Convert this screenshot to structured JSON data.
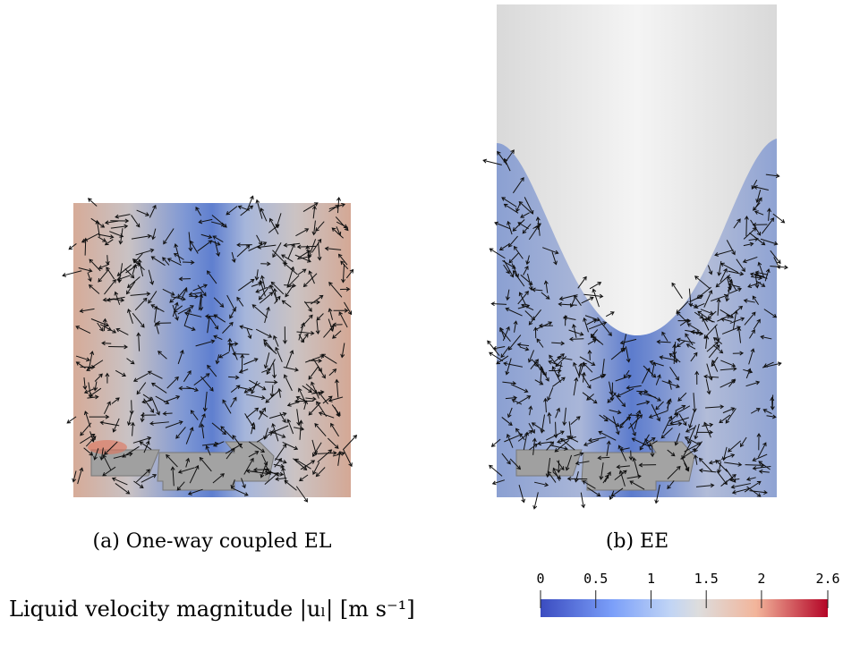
{
  "panels": [
    {
      "caption": "(a) One-way coupled EL"
    },
    {
      "caption": "(b) EE"
    }
  ],
  "colorbar": {
    "label": "Liquid velocity magnitude |uₗ| [m s⁻¹]",
    "range": [
      0,
      2.6
    ],
    "ticks": [
      0,
      0.5,
      1,
      1.5,
      2,
      2.6
    ]
  }
}
